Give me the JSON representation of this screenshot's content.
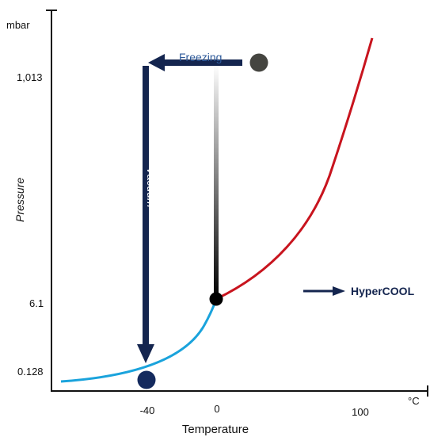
{
  "y_axis": {
    "unit": "mbar",
    "label": "Pressure",
    "ticks": [
      "1,013",
      "6.1",
      "0.128"
    ]
  },
  "x_axis": {
    "unit": "°C",
    "label": "Temperature",
    "ticks": [
      "-40",
      "0",
      "100"
    ]
  },
  "process": {
    "freezing_label": "Freezing",
    "vacuum_label": "Vacuum"
  },
  "legend": {
    "label": "HyperCOOL"
  },
  "colors": {
    "axis": "#111111",
    "arrow": "#14254f",
    "vapor_curve": "#c8141e",
    "sublimation_curve": "#1aa3dc",
    "start_dot": "#454540",
    "end_dot": "#142a5e",
    "triple_point": "#000000"
  }
}
